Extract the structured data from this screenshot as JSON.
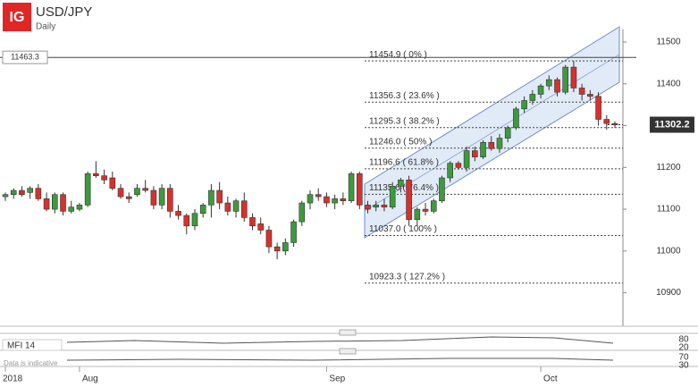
{
  "header": {
    "logo": "IG",
    "symbol": "USD/JPY",
    "interval": "Daily"
  },
  "chart_data": {
    "type": "candlestick",
    "categories": [
      "2018",
      null,
      null,
      null,
      null,
      null,
      null,
      null,
      null,
      "Aug",
      null,
      null,
      null,
      null,
      null,
      null,
      null,
      null,
      null,
      null,
      null,
      null,
      null,
      null,
      null,
      null,
      null,
      null,
      null,
      null,
      null,
      null,
      null,
      null,
      null,
      null,
      null,
      null,
      null,
      "Sep",
      null,
      null,
      null,
      null,
      null,
      null,
      null,
      null,
      null,
      null,
      null,
      null,
      null,
      null,
      null,
      null,
      null,
      null,
      null,
      null,
      null,
      null,
      null,
      null,
      null,
      "Oct",
      null,
      null,
      null,
      null,
      null,
      null,
      null,
      null,
      null
    ],
    "open": [
      11130,
      11135,
      11145,
      11140,
      11150,
      11125,
      11100,
      11135,
      11095,
      11100,
      11110,
      11185,
      11180,
      11175,
      11150,
      11130,
      11135,
      11150,
      11145,
      11110,
      11150,
      11095,
      11085,
      11060,
      11090,
      11110,
      11145,
      11115,
      11095,
      11120,
      11080,
      11065,
      11050,
      11010,
      11000,
      11020,
      11070,
      11115,
      11135,
      11130,
      11115,
      11125,
      11120,
      11185,
      11110,
      11105,
      11110,
      11105,
      11155,
      11170,
      11075,
      11100,
      11095,
      11120,
      11175,
      11210,
      11200,
      11240,
      11225,
      11260,
      11245,
      11270,
      11295,
      11340,
      11360,
      11375,
      11395,
      11410,
      11380,
      11440,
      11390,
      11375,
      11370,
      11315,
      11305
    ],
    "high": [
      11140,
      11150,
      11155,
      11155,
      11160,
      11140,
      11140,
      11140,
      11120,
      11115,
      11190,
      11215,
      11195,
      11190,
      11160,
      11140,
      11160,
      11170,
      11155,
      11160,
      11160,
      11110,
      11090,
      11100,
      11115,
      11160,
      11165,
      11130,
      11125,
      11140,
      11090,
      11080,
      11060,
      11020,
      11030,
      11075,
      11120,
      11145,
      11150,
      11140,
      11135,
      11140,
      11190,
      11190,
      11120,
      11120,
      11125,
      11165,
      11175,
      11180,
      11105,
      11115,
      11125,
      11180,
      11215,
      11215,
      11250,
      11250,
      11265,
      11275,
      11280,
      11300,
      11345,
      11370,
      11385,
      11400,
      11420,
      11415,
      11445,
      11455,
      11400,
      11385,
      11380,
      11325,
      11310
    ],
    "low": [
      11120,
      11125,
      11130,
      11125,
      11120,
      11095,
      11090,
      11085,
      11090,
      11095,
      11105,
      11175,
      11160,
      11145,
      11125,
      11115,
      11130,
      11140,
      11100,
      11100,
      11080,
      11075,
      11040,
      11050,
      11080,
      11080,
      11100,
      11085,
      11080,
      11070,
      11050,
      11040,
      10995,
      10980,
      10990,
      11010,
      11060,
      11100,
      11120,
      11105,
      11100,
      11110,
      11115,
      11100,
      11090,
      11095,
      11095,
      11100,
      11140,
      11060,
      11060,
      11085,
      11090,
      11115,
      11165,
      11195,
      11190,
      11215,
      11220,
      11240,
      11235,
      11260,
      11290,
      11330,
      11350,
      11365,
      11385,
      11370,
      11375,
      11380,
      11360,
      11360,
      11300,
      11290,
      11295
    ],
    "close": [
      11135,
      11145,
      11135,
      11150,
      11125,
      11100,
      11135,
      11095,
      11105,
      11110,
      11185,
      11180,
      11170,
      11150,
      11130,
      11125,
      11150,
      11145,
      11110,
      11150,
      11095,
      11085,
      11060,
      11090,
      11110,
      11145,
      11115,
      11095,
      11120,
      11080,
      11060,
      11050,
      11010,
      11000,
      11020,
      11070,
      11115,
      11135,
      11130,
      11115,
      11125,
      11120,
      11185,
      11110,
      11100,
      11110,
      11105,
      11155,
      11170,
      11075,
      11100,
      11095,
      11120,
      11175,
      11210,
      11200,
      11240,
      11225,
      11260,
      11245,
      11270,
      11295,
      11340,
      11360,
      11375,
      11395,
      11410,
      11380,
      11440,
      11390,
      11375,
      11370,
      11315,
      11305,
      11302
    ],
    "up_color": "#3c9b3c",
    "down_color": "#d9302c",
    "ylim": [
      10820,
      11530
    ],
    "yticks": [
      10900,
      11000,
      11100,
      11200,
      11300,
      11400,
      11500
    ],
    "fib_levels": [
      {
        "value": 11454.9,
        "label": "11454.9 ( 0% )"
      },
      {
        "value": 11356.3,
        "label": "11356.3 ( 23.6% )"
      },
      {
        "value": 11295.3,
        "label": "11295.3 ( 38.2% )"
      },
      {
        "value": 11246.0,
        "label": "11246.0 ( 50% )"
      },
      {
        "value": 11196.6,
        "label": "11196.6 ( 61.8% )"
      },
      {
        "value": 11135.6,
        "label": "11135.6 ( 76.4% )"
      },
      {
        "value": 11037.0,
        "label": "11037.0 ( 100% )"
      },
      {
        "value": 10923.3,
        "label": "10923.3 ( 127.2% )"
      }
    ],
    "hline": {
      "value": 11463.3,
      "label": "11463.3"
    },
    "last_price": {
      "value": 11302.2,
      "label": "11302.2"
    }
  },
  "indicator": {
    "name": "MFI 14",
    "levels_top": [
      "80",
      "20"
    ],
    "levels_bottom": [
      "70",
      "30"
    ],
    "note": "Data is indicative"
  }
}
